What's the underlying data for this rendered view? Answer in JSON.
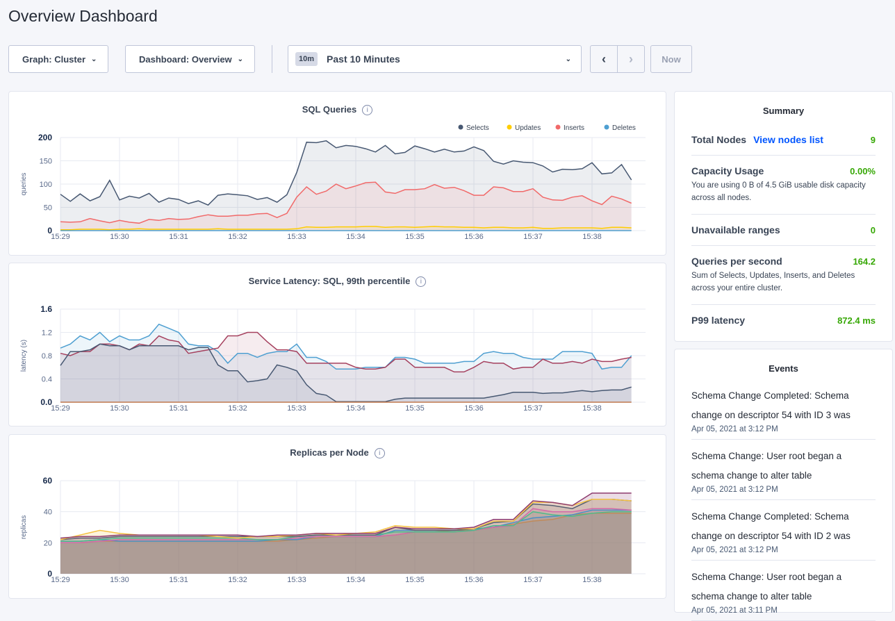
{
  "page": {
    "title": "Overview Dashboard"
  },
  "toolbar": {
    "graph": "Graph: Cluster",
    "dashboard": "Dashboard: Overview",
    "time_badge": "10m",
    "time_range": "Past 10 Minutes",
    "now": "Now"
  },
  "colors": {
    "accent": "#0055ff",
    "good": "#37a806"
  },
  "charts": [
    {
      "title": "SQL Queries",
      "type": "area",
      "ylabel": "queries",
      "ylim": [
        0,
        200
      ],
      "yticks": [
        0,
        50,
        100,
        150,
        200
      ],
      "xticks": [
        "15:29",
        "15:30",
        "15:31",
        "15:32",
        "15:33",
        "15:34",
        "15:35",
        "15:36",
        "15:37",
        "15:38"
      ],
      "start": "15:29:00",
      "interval_seconds": 10,
      "legend": "top-right",
      "series": [
        {
          "name": "Selects",
          "color": "#475872",
          "values": [
            78,
            63,
            79,
            64,
            73,
            108,
            66,
            74,
            70,
            80,
            61,
            70,
            67,
            58,
            64,
            55,
            76,
            79,
            77,
            75,
            67,
            71,
            61,
            77,
            125,
            190,
            189,
            193,
            178,
            183,
            181,
            176,
            169,
            183,
            165,
            168,
            182,
            176,
            169,
            175,
            169,
            171,
            180,
            172,
            149,
            143,
            150,
            147,
            146,
            139,
            126,
            132,
            131,
            133,
            146,
            122,
            124,
            142,
            109
          ]
        },
        {
          "name": "Updates",
          "color": "#ffcd02",
          "values": [
            2,
            2,
            3,
            3,
            3,
            2,
            3,
            3,
            4,
            3,
            3,
            3,
            3,
            3,
            3,
            3,
            4,
            3,
            3,
            3,
            3,
            3,
            3,
            3,
            4,
            8,
            7,
            7,
            8,
            8,
            8,
            9,
            9,
            7,
            8,
            8,
            7,
            8,
            9,
            8,
            8,
            7,
            7,
            6,
            7,
            7,
            6,
            6,
            7,
            5,
            5,
            6,
            6,
            6,
            6,
            5,
            7,
            7,
            6
          ]
        },
        {
          "name": "Inserts",
          "color": "#f16969",
          "values": [
            19,
            18,
            19,
            26,
            21,
            17,
            22,
            18,
            16,
            24,
            22,
            26,
            24,
            25,
            30,
            34,
            31,
            31,
            33,
            33,
            36,
            37,
            28,
            37,
            72,
            94,
            78,
            85,
            100,
            90,
            96,
            103,
            104,
            83,
            80,
            88,
            88,
            90,
            99,
            91,
            93,
            86,
            76,
            76,
            94,
            92,
            84,
            84,
            90,
            72,
            66,
            65,
            72,
            75,
            64,
            56,
            74,
            68,
            59
          ]
        },
        {
          "name": "Deletes",
          "color": "#4e9fd1",
          "values": [
            0,
            0,
            0,
            0,
            0,
            0,
            0,
            0,
            0,
            0,
            0,
            0,
            0,
            0,
            0,
            0,
            0,
            0,
            0,
            0,
            0,
            0,
            0,
            0,
            0,
            0,
            0,
            0,
            0,
            0,
            0,
            0,
            0,
            0,
            0,
            0,
            0,
            0,
            0,
            0,
            0,
            0,
            0,
            0,
            0,
            0,
            0,
            0,
            0,
            0,
            0,
            0,
            0,
            0,
            0,
            0,
            0,
            0,
            0
          ]
        }
      ]
    },
    {
      "title": "Service Latency: SQL, 99th percentile",
      "type": "area",
      "ylabel": "latency (s)",
      "ylim": [
        0,
        1.6
      ],
      "yticks": [
        "0.0",
        "0.4",
        "0.8",
        "1.2",
        "1.6"
      ],
      "xticks": [
        "15:29",
        "15:30",
        "15:31",
        "15:32",
        "15:33",
        "15:34",
        "15:35",
        "15:36",
        "15:37",
        "15:38"
      ],
      "start": "15:29:00",
      "interval_seconds": 10,
      "series": [
        {
          "color": "#4e9fd1",
          "values": [
            0.93,
            1.0,
            1.14,
            1.07,
            1.2,
            1.04,
            1.14,
            1.07,
            1.07,
            1.14,
            1.34,
            1.27,
            1.2,
            1.0,
            0.97,
            0.97,
            0.87,
            0.67,
            0.84,
            0.84,
            0.77,
            0.84,
            0.87,
            0.87,
            1.0,
            0.77,
            0.77,
            0.7,
            0.57,
            0.57,
            0.57,
            0.6,
            0.6,
            0.6,
            0.77,
            0.77,
            0.74,
            0.67,
            0.67,
            0.67,
            0.67,
            0.7,
            0.7,
            0.84,
            0.87,
            0.84,
            0.84,
            0.77,
            0.74,
            0.74,
            0.74,
            0.87,
            0.87,
            0.87,
            0.84,
            0.57,
            0.6,
            0.6,
            0.8
          ]
        },
        {
          "color": "#a5405e",
          "values": [
            0.84,
            0.8,
            0.87,
            0.87,
            1.0,
            1.0,
            0.97,
            0.9,
            1.0,
            0.97,
            1.14,
            1.07,
            1.04,
            0.84,
            0.87,
            0.9,
            0.93,
            1.14,
            1.14,
            1.2,
            1.2,
            1.04,
            0.9,
            0.9,
            0.87,
            0.67,
            0.67,
            0.67,
            0.67,
            0.67,
            0.6,
            0.57,
            0.57,
            0.6,
            0.74,
            0.74,
            0.6,
            0.6,
            0.6,
            0.6,
            0.52,
            0.52,
            0.6,
            0.7,
            0.67,
            0.67,
            0.57,
            0.6,
            0.6,
            0.74,
            0.67,
            0.67,
            0.7,
            0.67,
            0.74,
            0.7,
            0.7,
            0.74,
            0.77
          ]
        },
        {
          "color": "#475872",
          "values": [
            0.63,
            0.87,
            0.87,
            0.9,
            1.0,
            0.97,
            0.97,
            0.9,
            0.97,
            0.97,
            0.97,
            0.97,
            0.97,
            0.9,
            0.94,
            0.94,
            0.64,
            0.54,
            0.54,
            0.35,
            0.37,
            0.4,
            0.64,
            0.6,
            0.54,
            0.3,
            0.15,
            0.12,
            0.01,
            0.01,
            0.01,
            0.01,
            0.01,
            0.01,
            0.05,
            0.07,
            0.07,
            0.07,
            0.07,
            0.07,
            0.07,
            0.07,
            0.07,
            0.07,
            0.1,
            0.13,
            0.17,
            0.17,
            0.17,
            0.15,
            0.16,
            0.16,
            0.18,
            0.2,
            0.18,
            0.2,
            0.21,
            0.21,
            0.26
          ]
        },
        {
          "color": "#c0784f",
          "values": [
            0,
            0,
            0,
            0,
            0,
            0,
            0,
            0,
            0,
            0,
            0,
            0,
            0,
            0,
            0,
            0,
            0,
            0,
            0,
            0,
            0,
            0,
            0,
            0,
            0,
            0,
            0,
            0,
            0,
            0,
            0,
            0,
            0,
            0,
            0,
            0,
            0,
            0,
            0,
            0,
            0,
            0,
            0,
            0,
            0,
            0,
            0,
            0,
            0,
            0,
            0,
            0,
            0,
            0,
            0,
            0,
            0,
            0,
            0
          ]
        }
      ]
    },
    {
      "title": "Replicas per Node",
      "type": "area",
      "ylabel": "replicas",
      "ylim": [
        0,
        60
      ],
      "yticks": [
        0,
        20,
        40,
        60
      ],
      "xticks": [
        "15:29",
        "15:30",
        "15:31",
        "15:32",
        "15:33",
        "15:34",
        "15:35",
        "15:36",
        "15:37",
        "15:38"
      ],
      "start": "15:29:00",
      "interval_seconds": 20,
      "series": [
        {
          "color": "#c08a5a",
          "values": [
            20,
            20,
            21,
            21,
            21,
            21,
            21,
            21,
            21,
            21,
            21,
            21,
            22,
            23,
            24,
            24,
            24,
            25,
            27,
            27,
            28,
            28,
            30,
            32,
            34,
            35,
            38,
            39,
            39,
            39
          ]
        },
        {
          "color": "#4a90c4",
          "values": [
            21,
            21,
            22,
            21,
            21,
            21,
            21,
            21,
            21,
            21,
            21,
            22,
            22,
            24,
            24,
            24,
            24,
            28,
            28,
            28,
            28,
            29,
            30,
            33,
            36,
            37,
            38,
            41,
            41,
            41
          ]
        },
        {
          "color": "#d36aa8",
          "values": [
            20,
            20,
            21,
            22,
            22,
            22,
            22,
            22,
            22,
            22,
            22,
            22,
            23,
            24,
            24,
            24,
            24,
            25,
            27,
            27,
            27,
            28,
            30,
            31,
            42,
            40,
            40,
            42,
            42,
            41
          ]
        },
        {
          "color": "#4fbb8a",
          "values": [
            21,
            21,
            22,
            23,
            23,
            23,
            23,
            23,
            23,
            23,
            22,
            22,
            24,
            25,
            25,
            25,
            25,
            27,
            27,
            27,
            27,
            28,
            31,
            31,
            40,
            38,
            37,
            39,
            40,
            40
          ]
        },
        {
          "color": "#556070",
          "values": [
            22,
            23,
            23,
            24,
            24,
            24,
            24,
            24,
            24,
            24,
            24,
            24,
            24,
            25,
            25,
            25,
            25,
            30,
            28,
            28,
            28,
            29,
            33,
            34,
            45,
            44,
            42,
            48,
            48,
            47
          ]
        },
        {
          "color": "#f5c242",
          "values": [
            22,
            25,
            28,
            26,
            25,
            25,
            25,
            25,
            24,
            23,
            24,
            24,
            25,
            26,
            25,
            26,
            27,
            31,
            30,
            30,
            29,
            29,
            34,
            34,
            46,
            46,
            44,
            48,
            48,
            47
          ]
        },
        {
          "color": "#8e3b6e",
          "values": [
            23,
            24,
            24,
            25,
            25,
            25,
            25,
            25,
            25,
            25,
            24,
            25,
            25,
            26,
            26,
            26,
            26,
            30,
            29,
            29,
            29,
            30,
            35,
            35,
            47,
            46,
            44,
            52,
            52,
            52
          ]
        }
      ]
    }
  ],
  "summary": {
    "title": "Summary",
    "total_nodes": {
      "label": "Total Nodes",
      "link": "View nodes list",
      "value": "9"
    },
    "capacity": {
      "label": "Capacity Usage",
      "value": "0.00%",
      "desc": "You are using 0 B of 4.5 GiB usable disk capacity across all nodes."
    },
    "unavailable": {
      "label": "Unavailable ranges",
      "value": "0"
    },
    "qps": {
      "label": "Queries per second",
      "value": "164.2",
      "desc": "Sum of Selects, Updates, Inserts, and Deletes across your entire cluster."
    },
    "p99": {
      "label": "P99 latency",
      "value": "872.4 ms"
    }
  },
  "events": {
    "title": "Events",
    "items": [
      {
        "text": "Schema Change Completed: Schema change on descriptor 54 with ID 3 was",
        "date": "Apr 05, 2021 at 3:12 PM"
      },
      {
        "text": "Schema Change: User root began a schema change to alter table",
        "date": "Apr 05, 2021 at 3:12 PM"
      },
      {
        "text": "Schema Change Completed: Schema change on descriptor 54 with ID 2 was",
        "date": "Apr 05, 2021 at 3:12 PM"
      },
      {
        "text": "Schema Change: User root began a schema change to alter table",
        "date": "Apr 05, 2021 at 3:11 PM"
      }
    ]
  }
}
